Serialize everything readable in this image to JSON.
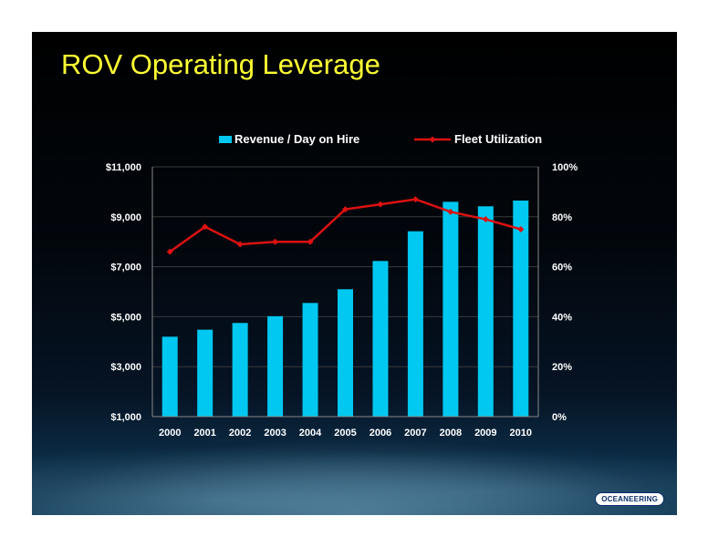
{
  "title": "ROV Operating Leverage",
  "logo_text": "OCEANEERING",
  "colors": {
    "title": "#ffff33",
    "bar": "#00c8f0",
    "line": "#dd1111",
    "text": "#ffffff"
  },
  "chart_data": {
    "type": "bar",
    "categories": [
      "2000",
      "2001",
      "2002",
      "2003",
      "2004",
      "2005",
      "2006",
      "2007",
      "2008",
      "2009",
      "2010"
    ],
    "series": [
      {
        "name": "Revenue / Day on Hire",
        "type": "bar",
        "axis": "left",
        "values": [
          4200,
          4480,
          4750,
          5020,
          5550,
          6100,
          7230,
          8420,
          9600,
          9420,
          9650
        ]
      },
      {
        "name": "Fleet Utilization",
        "type": "line",
        "axis": "right",
        "values": [
          0.66,
          0.76,
          0.69,
          0.7,
          0.7,
          0.83,
          0.85,
          0.87,
          0.82,
          0.79,
          0.75
        ]
      }
    ],
    "y_left": {
      "min": 1000,
      "max": 11000,
      "ticks": [
        1000,
        3000,
        5000,
        7000,
        9000,
        11000
      ],
      "tick_labels": [
        "$1,000",
        "$3,000",
        "$5,000",
        "$7,000",
        "$9,000",
        "$11,000"
      ]
    },
    "y_right": {
      "min": 0,
      "max": 1,
      "ticks": [
        0,
        0.2,
        0.4,
        0.6,
        0.8,
        1.0
      ],
      "tick_labels": [
        "0%",
        "20%",
        "40%",
        "60%",
        "80%",
        "100%"
      ]
    },
    "grid": true,
    "legend": "top-center"
  }
}
